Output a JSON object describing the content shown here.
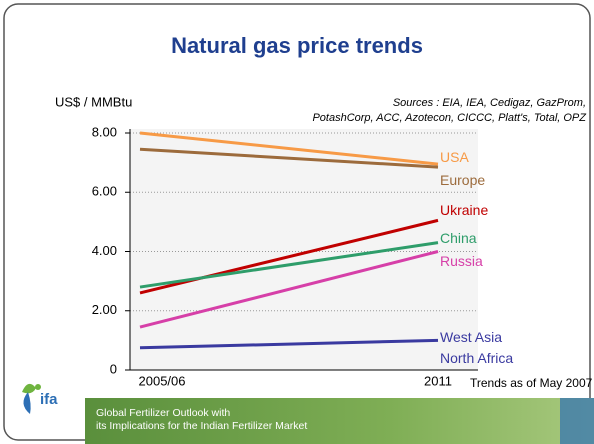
{
  "logo": "ifa",
  "footer": [
    "Global Fertilizer Outlook with",
    "its Implications for the Indian Fertilizer Market"
  ],
  "chart_data": {
    "type": "line",
    "title": "Natural gas price trends",
    "ylabel": "US$ / MMBtu",
    "sources": [
      "Sources : EIA, IEA, Cedigaz, GazProm,",
      "PotashCorp, ACC, Azotecon, CICCC, Platt's, Total, OPZ"
    ],
    "annotation": "Trends as of May 2007",
    "categories": [
      "2005/06",
      "2011"
    ],
    "series": [
      {
        "name": "USA",
        "color": "#f79a46",
        "values": [
          8.0,
          6.95
        ]
      },
      {
        "name": "Europe",
        "color": "#9c6b3c",
        "values": [
          7.45,
          6.85
        ]
      },
      {
        "name": "Ukraine",
        "color": "#c00000",
        "values": [
          2.6,
          5.05
        ]
      },
      {
        "name": "China",
        "color": "#2e9d6a",
        "values": [
          2.8,
          4.3
        ]
      },
      {
        "name": "Russia",
        "color": "#d63fa8",
        "values": [
          1.45,
          4.0
        ]
      },
      {
        "name": "West Asia North Africa",
        "color": "#3a3aa0",
        "values": [
          0.75,
          1.0
        ]
      }
    ],
    "ylim": [
      0,
      8
    ],
    "yticks": [
      0,
      {
        "value": 2,
        "label": "2.00"
      },
      {
        "value": 4,
        "label": "4.00"
      },
      {
        "value": 6,
        "label": "6.00"
      },
      {
        "value": 8,
        "label": "8.00"
      }
    ],
    "grid": true
  }
}
